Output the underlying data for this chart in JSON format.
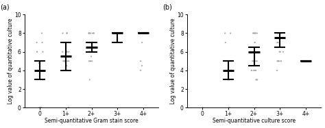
{
  "panel_a": {
    "title": "(a)",
    "xlabel": "Semi-quantitative Gram stain score",
    "ylabel": "Log value of quantitative culture",
    "categories": [
      "0",
      "1+",
      "2+",
      "3+",
      "4+"
    ],
    "x_positions": [
      0,
      1,
      2,
      3,
      4
    ],
    "means": [
      4.0,
      5.5,
      6.5,
      8.0,
      8.0
    ],
    "ci_low": [
      3.0,
      4.0,
      6.0,
      7.0,
      8.0
    ],
    "ci_high": [
      5.0,
      7.0,
      7.0,
      8.0,
      8.0
    ],
    "scatter": [
      [
        0,
        [
          0,
          0,
          0,
          0,
          0,
          0,
          0,
          3,
          3,
          4.8,
          5,
          5,
          5,
          6,
          6,
          6,
          7,
          7,
          8
        ]
      ],
      [
        1,
        [
          0,
          0,
          4,
          4,
          4,
          4,
          4.5,
          5,
          5,
          5,
          5,
          5,
          5,
          5,
          6,
          6,
          6,
          6,
          6,
          6,
          6,
          7,
          7,
          8,
          8,
          8,
          8
        ]
      ],
      [
        2,
        [
          3,
          5,
          5,
          5,
          5,
          5.5,
          6,
          6,
          6,
          6,
          6,
          6,
          7,
          7,
          7,
          7,
          8,
          8,
          8,
          8,
          8,
          8,
          8,
          8
        ]
      ],
      [
        3,
        [
          7,
          7,
          7,
          8,
          8,
          8,
          8
        ]
      ],
      [
        4,
        [
          4,
          4.5,
          5,
          7,
          8,
          8,
          8,
          8
        ]
      ]
    ],
    "ylim": [
      0,
      10
    ],
    "yticks": [
      0,
      2,
      4,
      6,
      8,
      10
    ]
  },
  "panel_b": {
    "title": "(b)",
    "xlabel": "Semi-quantitative culture score",
    "ylabel": "Log value of quantitative culture",
    "categories": [
      "0",
      "1+",
      "2+",
      "3+",
      "4+"
    ],
    "x_positions": [
      0,
      1,
      2,
      3,
      4
    ],
    "means": [
      null,
      4.0,
      6.0,
      7.5,
      5.0
    ],
    "ci_low": [
      null,
      3.0,
      4.5,
      6.5,
      5.0
    ],
    "ci_high": [
      null,
      5.0,
      6.5,
      8.0,
      5.0
    ],
    "scatter": [
      [
        0,
        [
          0
        ]
      ],
      [
        1,
        [
          0,
          0,
          3,
          3,
          3,
          4,
          4,
          4,
          4,
          5,
          5,
          5,
          5,
          5,
          7,
          8,
          8
        ]
      ],
      [
        2,
        [
          0,
          3,
          3,
          3,
          4,
          4,
          4,
          4,
          4,
          5,
          5,
          5,
          5,
          5,
          6,
          6,
          6,
          7,
          7,
          8,
          8,
          8,
          8,
          8,
          8
        ]
      ],
      [
        3,
        [
          4,
          5,
          5,
          5,
          5,
          5,
          5,
          6,
          6,
          6,
          7,
          7,
          8,
          8,
          8,
          8
        ]
      ],
      [
        4,
        [
          5,
          5
        ]
      ]
    ],
    "ylim": [
      0,
      10
    ],
    "yticks": [
      0,
      2,
      4,
      6,
      8,
      10
    ]
  },
  "dot_color": "#aaaaaa",
  "line_color": "#000000",
  "dot_size": 3,
  "dot_size_scatter": 2.5,
  "errorbar_linewidth": 1.5,
  "mean_linewidth": 2.2,
  "mean_capwidth": 0.22,
  "background_color": "#ffffff",
  "tick_fontsize": 5.5,
  "xlabel_fontsize": 5.5,
  "ylabel_fontsize": 5.5,
  "panel_label_fontsize": 7
}
